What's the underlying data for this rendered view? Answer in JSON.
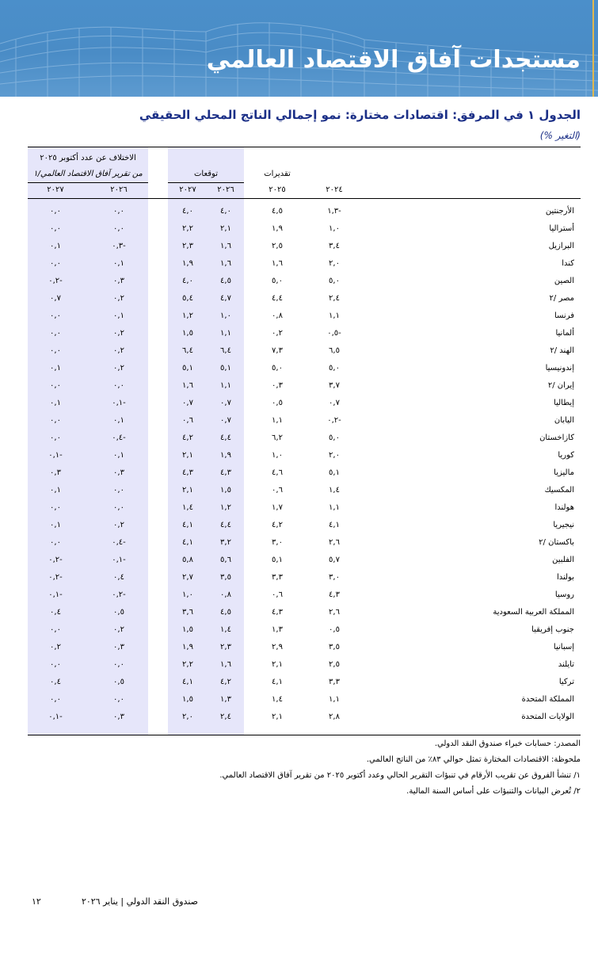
{
  "banner": {
    "title": "مستجدات آفاق الاقتصاد العالمي"
  },
  "table": {
    "title": "الجدول ١ في المرفق: اقتصادات مختارة: نمو إجمالي الناتج المحلي الحقيقي",
    "unit": "(التغير %)",
    "group_estimates": "تقديرات",
    "group_projections": "توقعات",
    "group_diff_line1": "الاختلاف عن عدد أكتوبر ٢٠٢٥",
    "group_diff_line2": "من تقرير آفاق الاقتصاد العالمي/١",
    "years": {
      "y2024": "٢٠٢٤",
      "y2025": "٢٠٢٥",
      "p2026": "٢٠٢٦",
      "p2027": "٢٠٢٧",
      "d2026": "٢٠٢٦",
      "d2027": "٢٠٢٧"
    },
    "rows": [
      [
        "الأرجنتين",
        "-١,٣",
        "٤,٥",
        "٤,٠",
        "٤,٠",
        "٠,٠",
        "٠,٠"
      ],
      [
        "أستراليا",
        "١,٠",
        "١,٩",
        "٢,١",
        "٢,٢",
        "٠,٠",
        "٠,٠"
      ],
      [
        "البرازيل",
        "٣,٤",
        "٢,٥",
        "١,٦",
        "٢,٣",
        "-٠,٣",
        "٠,١"
      ],
      [
        "كندا",
        "٢,٠",
        "١,٦",
        "١,٦",
        "١,٩",
        "٠,١",
        "٠,٠"
      ],
      [
        "الصين",
        "٥,٠",
        "٥,٠",
        "٤,٥",
        "٤,٠",
        "٠,٣",
        "-٠,٢"
      ],
      [
        "مصر /٢",
        "٢,٤",
        "٤,٤",
        "٤,٧",
        "٥,٤",
        "٠,٢",
        "٠,٧"
      ],
      [
        "فرنسا",
        "١,١",
        "٠,٨",
        "١,٠",
        "١,٢",
        "٠,١",
        "٠,٠"
      ],
      [
        "ألمانيا",
        "-٠,٥",
        "٠,٢",
        "١,١",
        "١,٥",
        "٠,٢",
        "٠,٠"
      ],
      [
        "الهند /٢",
        "٦,٥",
        "٧,٣",
        "٦,٤",
        "٦,٤",
        "٠,٢",
        "٠,٠"
      ],
      [
        "إندونيسيا",
        "٥,٠",
        "٥,٠",
        "٥,١",
        "٥,١",
        "٠,٢",
        "٠,١"
      ],
      [
        "إيران /٢",
        "٣,٧",
        "٠,٣",
        "١,١",
        "١,٦",
        "٠,٠",
        "٠,٠"
      ],
      [
        "إيطاليا",
        "٠,٧",
        "٠,٥",
        "٠,٧",
        "٠,٧",
        "-٠,١",
        "٠,١"
      ],
      [
        "اليابان",
        "-٠,٢",
        "١,١",
        "٠,٧",
        "٠,٦",
        "٠,١",
        "٠,٠"
      ],
      [
        "كازاخستان",
        "٥,٠",
        "٦,٢",
        "٤,٤",
        "٤,٢",
        "-٠,٤",
        "٠,٠"
      ],
      [
        "كوريا",
        "٢,٠",
        "١,٠",
        "١,٩",
        "٢,١",
        "٠,١",
        "-٠,١"
      ],
      [
        "ماليزيا",
        "٥,١",
        "٤,٦",
        "٤,٣",
        "٤,٣",
        "٠,٣",
        "٠,٣"
      ],
      [
        "المكسيك",
        "١,٤",
        "٠,٦",
        "١,٥",
        "٢,١",
        "٠,٠",
        "٠,١"
      ],
      [
        "هولندا",
        "١,١",
        "١,٧",
        "١,٢",
        "١,٤",
        "٠,٠",
        "٠,٠"
      ],
      [
        "نيجيريا",
        "٤,١",
        "٤,٢",
        "٤,٤",
        "٤,١",
        "٠,٢",
        "٠,١"
      ],
      [
        "باكستان /٢",
        "٢,٦",
        "٣,٠",
        "٣,٢",
        "٤,١",
        "-٠,٤",
        "٠,٠"
      ],
      [
        "الفلبين",
        "٥,٧",
        "٥,١",
        "٥,٦",
        "٥,٨",
        "-٠,١",
        "-٠,٢"
      ],
      [
        "بولندا",
        "٣,٠",
        "٣,٣",
        "٣,٥",
        "٢,٧",
        "٠,٤",
        "-٠,٢"
      ],
      [
        "روسيا",
        "٤,٣",
        "٠,٦",
        "٠,٨",
        "١,٠",
        "-٠,٢",
        "-٠,١"
      ],
      [
        "المملكة العربية السعودية",
        "٢,٦",
        "٤,٣",
        "٤,٥",
        "٣,٦",
        "٠,٥",
        "٠,٤"
      ],
      [
        "جنوب إفريقيا",
        "٠,٥",
        "١,٣",
        "١,٤",
        "١,٥",
        "٠,٢",
        "٠,٠"
      ],
      [
        "إسبانيا",
        "٣,٥",
        "٢,٩",
        "٢,٣",
        "١,٩",
        "٠,٣",
        "٠,٢"
      ],
      [
        "تايلند",
        "٢,٥",
        "٢,١",
        "١,٦",
        "٢,٢",
        "٠,٠",
        "٠,٠"
      ],
      [
        "تركيا",
        "٣,٣",
        "٤,١",
        "٤,٢",
        "٤,١",
        "٠,٥",
        "٠,٤"
      ],
      [
        "المملكة المتحدة",
        "١,١",
        "١,٤",
        "١,٣",
        "١,٥",
        "٠,٠",
        "٠,٠"
      ],
      [
        "الولايات المتحدة",
        "٢,٨",
        "٢,١",
        "٢,٤",
        "٢,٠",
        "٠,٣",
        "-٠,١"
      ]
    ]
  },
  "notes": {
    "source": "المصدر: حسابات خبراء صندوق النقد الدولي.",
    "note": "ملحوظة: الاقتصادات المختارة تمثل حوالي ٨٣٪ من الناتج العالمي.",
    "fn1": "١/ تنشأ الفروق عن تقريب الأرقام في تنبؤات التقرير الحالي وعدد أكتوبر ٢٠٢٥ من تقرير آفاق الاقتصاد العالمي.",
    "fn2": "٢/ تُعرض البيانات والتنبؤات على أساس السنة المالية."
  },
  "footer": {
    "publication": "صندوق النقد الدولي | يناير ٢٠٢٦",
    "page_number": "١٢"
  },
  "colors": {
    "banner": "#4a8ec8",
    "title": "#1b2f87",
    "band": "#e6e6fa"
  }
}
